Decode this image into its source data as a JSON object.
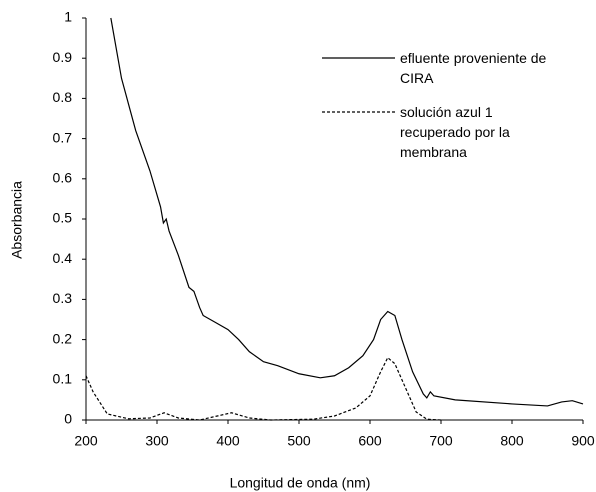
{
  "chart_data": {
    "type": "line",
    "xlabel": "Longitud de onda (nm)",
    "ylabel": "Absorbancia",
    "xlim": [
      200,
      900
    ],
    "xticks": [
      200,
      300,
      400,
      500,
      600,
      700,
      800,
      900
    ],
    "ylim": [
      0,
      1
    ],
    "yticks": [
      0,
      0.1,
      0.2,
      0.3,
      0.4,
      0.5,
      0.6,
      0.7,
      0.8,
      0.9,
      1
    ],
    "series": [
      {
        "name": "efluente proveniente de CIRA",
        "color": "#000000",
        "style": "solid",
        "x": [
          235,
          250,
          270,
          290,
          305,
          309,
          313,
          317,
          330,
          345,
          352,
          360,
          365,
          380,
          400,
          415,
          430,
          450,
          470,
          500,
          530,
          550,
          570,
          590,
          605,
          615,
          625,
          635,
          645,
          660,
          675,
          680,
          685,
          690,
          720,
          800,
          850,
          870,
          885,
          900
        ],
        "values": [
          1.0,
          0.85,
          0.72,
          0.62,
          0.53,
          0.49,
          0.5,
          0.47,
          0.41,
          0.33,
          0.32,
          0.28,
          0.26,
          0.245,
          0.225,
          0.2,
          0.17,
          0.145,
          0.135,
          0.115,
          0.105,
          0.11,
          0.13,
          0.16,
          0.2,
          0.25,
          0.27,
          0.26,
          0.2,
          0.12,
          0.065,
          0.055,
          0.07,
          0.06,
          0.05,
          0.04,
          0.035,
          0.045,
          0.048,
          0.04
        ]
      },
      {
        "name": "solución azul 1 recuperado por la membrana",
        "color": "#000000",
        "style": "dashed",
        "x": [
          200,
          210,
          230,
          260,
          290,
          310,
          330,
          360,
          390,
          405,
          430,
          460,
          520,
          550,
          580,
          600,
          615,
          625,
          635,
          650,
          665,
          680,
          700
        ],
        "values": [
          0.11,
          0.07,
          0.015,
          0.003,
          0.005,
          0.018,
          0.005,
          0,
          0.012,
          0.018,
          0.005,
          0,
          0.002,
          0.01,
          0.03,
          0.06,
          0.12,
          0.155,
          0.14,
          0.08,
          0.02,
          0.002,
          0
        ]
      }
    ]
  }
}
